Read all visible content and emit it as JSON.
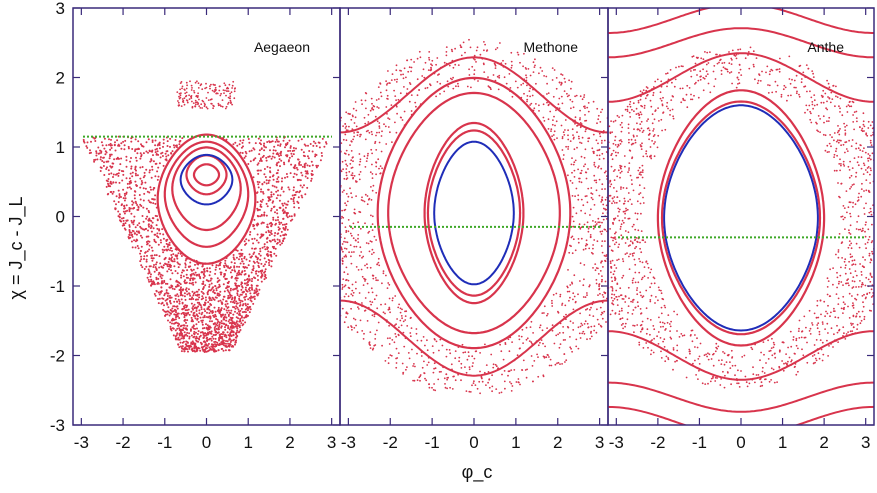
{
  "figure": {
    "ylabel": "χ = J_c - J_L",
    "xlabel": "φ_c",
    "colors": {
      "frame": "#3a2a7a",
      "points": "#d8344c",
      "blue_orbit": "#1f2db8",
      "threshold": "#3ea828"
    }
  },
  "chart_data": [
    {
      "type": "scatter",
      "title": "Aegaeon",
      "xlim": [
        -3.2,
        3.2
      ],
      "ylim": [
        -3,
        3
      ],
      "xticks": [
        -3,
        -2,
        -1,
        0,
        1,
        2,
        3
      ],
      "yticks": [
        -3,
        -2,
        -1,
        0,
        1,
        2,
        3
      ],
      "threshold_y": 1.15,
      "series": [
        {
          "kind": "closed_orbit",
          "color": "red",
          "center": [
            0,
            0.6
          ],
          "rx": 0.3,
          "ry": 0.14
        },
        {
          "kind": "closed_orbit",
          "color": "red",
          "center": [
            0,
            0.6
          ],
          "rx": 0.48,
          "ry": 0.26
        },
        {
          "kind": "closed_orbit",
          "color": "blue",
          "center": [
            0,
            0.53
          ],
          "rx": 0.62,
          "ry": 0.33
        },
        {
          "kind": "closed_orbit",
          "color": "red",
          "center": [
            0,
            0.4
          ],
          "rx": 0.82,
          "ry": 0.55
        },
        {
          "kind": "closed_orbit",
          "color": "red",
          "center": [
            0,
            0.32
          ],
          "rx": 1.0,
          "ry": 0.7
        },
        {
          "kind": "closed_orbit",
          "color": "red",
          "center": [
            0,
            0.25
          ],
          "rx": 1.17,
          "ry": 0.86
        },
        {
          "kind": "chaotic_sea",
          "color": "red",
          "extent": {
            "x": [
              -3.0,
              3.0
            ],
            "y": [
              -1.95,
              1.15
            ]
          }
        },
        {
          "kind": "chaotic_cap",
          "color": "red",
          "extent": {
            "x": [
              -0.7,
              0.7
            ],
            "y": [
              1.55,
              1.95
            ]
          }
        }
      ]
    },
    {
      "type": "scatter",
      "title": "Methone",
      "xlim": [
        -3.2,
        3.2
      ],
      "ylim": [
        -3,
        3
      ],
      "xticks": [
        -3,
        -2,
        -1,
        0,
        1,
        2,
        3
      ],
      "threshold_y": -0.15,
      "series": [
        {
          "kind": "closed_orbit",
          "color": "blue",
          "center": [
            0,
            0.05
          ],
          "rx": 0.95,
          "ry": 0.95
        },
        {
          "kind": "closed_orbit",
          "color": "red",
          "center": [
            0,
            0.05
          ],
          "rx": 1.1,
          "ry": 1.1
        },
        {
          "kind": "closed_orbit",
          "color": "red",
          "center": [
            0,
            0.05
          ],
          "rx": 1.18,
          "ry": 1.2
        },
        {
          "kind": "closed_orbit",
          "color": "red",
          "center": [
            0,
            0.05
          ],
          "rx": 2.05,
          "ry": 1.6
        },
        {
          "kind": "closed_orbit",
          "color": "red",
          "center": [
            0,
            0.05
          ],
          "rx": 2.3,
          "ry": 1.8
        },
        {
          "kind": "chaotic_band",
          "color": "red",
          "extent": {
            "y": [
              -2.6,
              2.55
            ]
          }
        },
        {
          "kind": "separatrix",
          "color": "red",
          "y_mid": 1.4,
          "amplitude": 0.9
        }
      ]
    },
    {
      "type": "scatter",
      "title": "Anthe",
      "xlim": [
        -3.2,
        3.2
      ],
      "ylim": [
        -3,
        3
      ],
      "xticks": [
        -3,
        -2,
        -1,
        0,
        1,
        2,
        3
      ],
      "threshold_y": -0.3,
      "series": [
        {
          "kind": "closed_orbit",
          "color": "blue",
          "center": [
            0,
            -0.02
          ],
          "rx": 1.85,
          "ry": 1.5
        },
        {
          "kind": "closed_orbit",
          "color": "red",
          "center": [
            0,
            -0.02
          ],
          "rx": 1.9,
          "ry": 1.55
        },
        {
          "kind": "closed_orbit",
          "color": "red",
          "center": [
            0,
            -0.02
          ],
          "rx": 2.0,
          "ry": 1.7
        },
        {
          "kind": "chaotic_band",
          "color": "red",
          "extent": {
            "y": [
              -2.5,
              2.45
            ]
          }
        },
        {
          "kind": "circulating",
          "color": "red",
          "levels": [
            2.0,
            2.5,
            2.85,
            -2.0,
            -2.6,
            -2.95
          ]
        }
      ]
    }
  ]
}
